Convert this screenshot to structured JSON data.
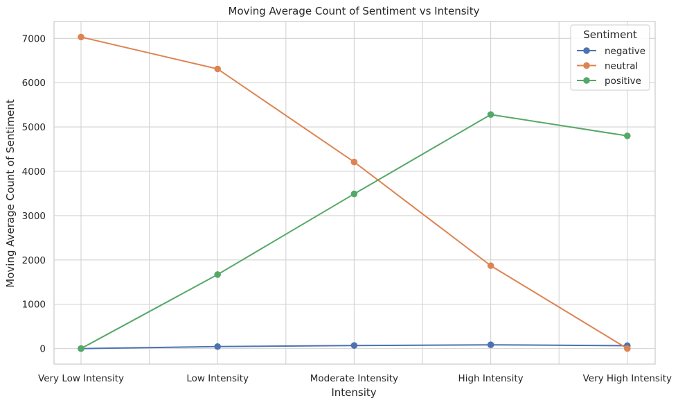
{
  "chart_data": {
    "type": "line",
    "title": "Moving Average Count of Sentiment vs Intensity",
    "xlabel": "Intensity",
    "ylabel": "Moving Average Count of Sentiment",
    "categories": [
      "Very Low Intensity",
      "Low Intensity",
      "Moderate Intensity",
      "High Intensity",
      "Very High Intensity"
    ],
    "ylim": [
      -350,
      7380
    ],
    "yticks": [
      0,
      1000,
      2000,
      3000,
      4000,
      5000,
      6000,
      7000
    ],
    "grid": true,
    "legend": {
      "title": "Sentiment",
      "placement": "top-right"
    },
    "series": [
      {
        "name": "negative",
        "color": "#4c72b0",
        "values": [
          0,
          45,
          70,
          85,
          65
        ]
      },
      {
        "name": "neutral",
        "color": "#dd8452",
        "values": [
          7030,
          6310,
          4210,
          1870,
          0
        ]
      },
      {
        "name": "positive",
        "color": "#55a868",
        "values": [
          0,
          1670,
          3490,
          5280,
          4800
        ]
      }
    ]
  }
}
